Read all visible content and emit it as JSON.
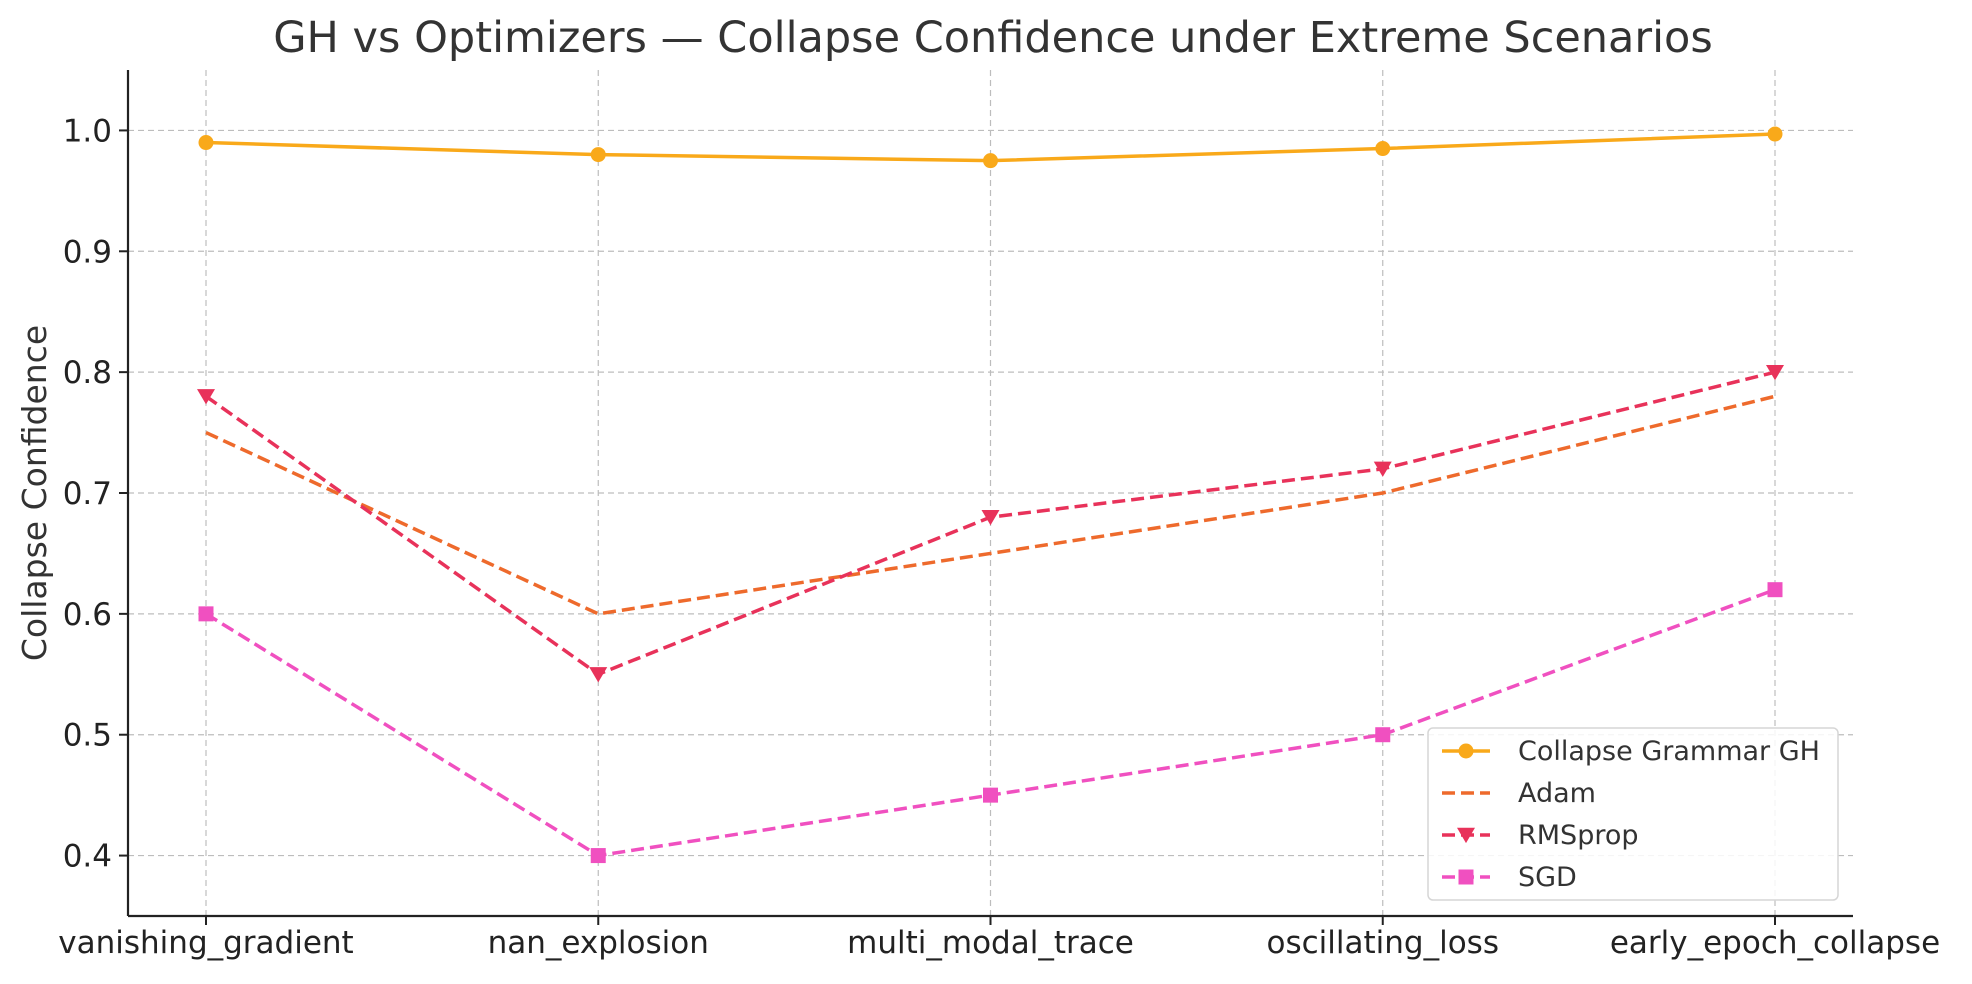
{
  "chart_data": {
    "type": "line",
    "title": "GH vs Optimizers — Collapse Confidence under Extreme Scenarios",
    "xlabel": "",
    "ylabel": "Collapse Confidence",
    "categories": [
      "vanishing_gradient",
      "nan_explosion",
      "multi_modal_trace",
      "oscillating_loss",
      "early_epoch_collapse"
    ],
    "ylim": [
      0.35,
      1.05
    ],
    "yticks": [
      "0.4",
      "0.5",
      "0.6",
      "0.7",
      "0.8",
      "0.9",
      "1.0"
    ],
    "grid": true,
    "legend_position": "lower-right",
    "series": [
      {
        "name": "Collapse Grammar GH",
        "values": [
          0.99,
          0.98,
          0.975,
          0.985,
          0.997
        ],
        "color": "#f9a91a",
        "dash": "solid",
        "marker": "circle"
      },
      {
        "name": "Adam",
        "values": [
          0.75,
          0.6,
          0.65,
          0.7,
          0.78
        ],
        "color": "#ee6a2c",
        "dash": "dashed",
        "marker": "none"
      },
      {
        "name": "RMSprop",
        "values": [
          0.78,
          0.55,
          0.68,
          0.72,
          0.8
        ],
        "color": "#e8325a",
        "dash": "dashed",
        "marker": "triangle-down"
      },
      {
        "name": "SGD",
        "values": [
          0.6,
          0.4,
          0.45,
          0.5,
          0.62
        ],
        "color": "#f050c0",
        "dash": "dashed",
        "marker": "square"
      }
    ]
  }
}
